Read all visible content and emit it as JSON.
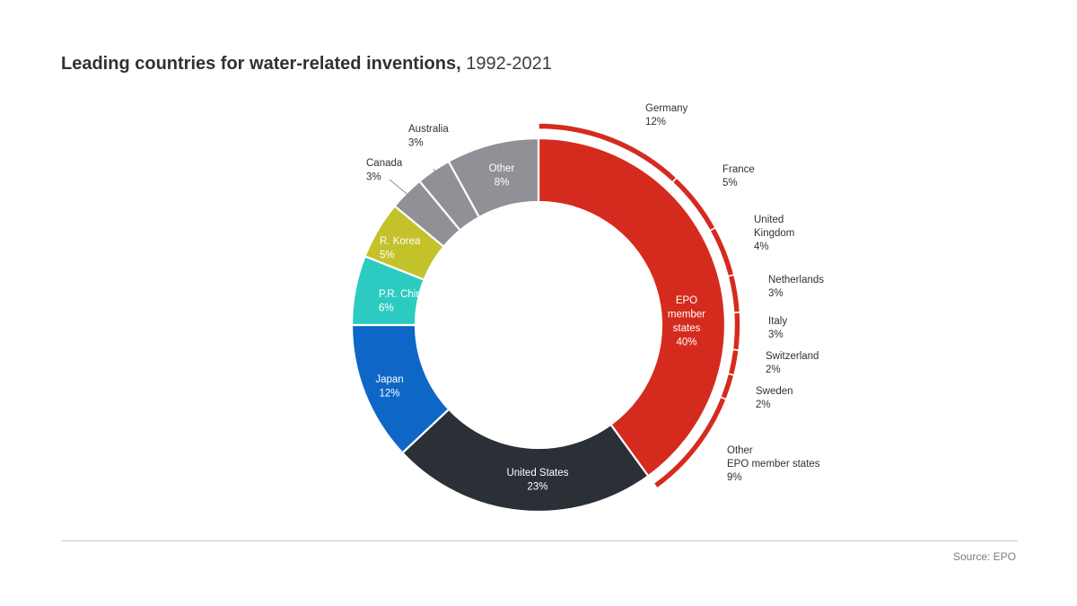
{
  "title": {
    "main": "Leading countries for water-related inventions,",
    "years": "1992-2021"
  },
  "source": "Source: EPO",
  "chart_data": {
    "type": "donut",
    "title": "Leading countries for water-related inventions, 1992-2021",
    "slices": [
      {
        "label": "EPO member states",
        "lines": [
          "EPO",
          "member",
          "states"
        ],
        "value": 40,
        "display": "40%",
        "color": "#d52b1e",
        "text_color": "#ffffff"
      },
      {
        "label": "United States",
        "lines": [
          "United States"
        ],
        "value": 23,
        "display": "23%",
        "color": "#2b2f36",
        "text_color": "#ffffff"
      },
      {
        "label": "Japan",
        "lines": [
          "Japan"
        ],
        "value": 12,
        "display": "12%",
        "color": "#0e67c6",
        "text_color": "#ffffff"
      },
      {
        "label": "P.R. China",
        "lines": [
          "P.R. China"
        ],
        "value": 6,
        "display": "6%",
        "color": "#2ccbc2",
        "text_color": "#ffffff"
      },
      {
        "label": "R. Korea",
        "lines": [
          "R. Korea"
        ],
        "value": 5,
        "display": "5%",
        "color": "#c3c22a",
        "text_color": "#ffffff"
      },
      {
        "label": "Canada",
        "lines": [
          "Canada"
        ],
        "value": 3,
        "display": "3%",
        "color": "#8f9196",
        "text_color": "#2e3138"
      },
      {
        "label": "Australia",
        "lines": [
          "Australia"
        ],
        "value": 3,
        "display": "3%",
        "color": "#8f9196",
        "text_color": "#2e3138"
      },
      {
        "label": "Other",
        "lines": [
          "Other"
        ],
        "value": 8,
        "display": "8%",
        "color": "#8f9196",
        "text_color": "#ffffff"
      }
    ],
    "epo_breakdown": {
      "color": "#d52b1e",
      "items": [
        {
          "label": "Germany",
          "lines": [
            "Germany"
          ],
          "value": 12,
          "display": "12%"
        },
        {
          "label": "France",
          "lines": [
            "France"
          ],
          "value": 5,
          "display": "5%"
        },
        {
          "label": "United Kingdom",
          "lines": [
            "United",
            "Kingdom"
          ],
          "value": 4,
          "display": "4%"
        },
        {
          "label": "Netherlands",
          "lines": [
            "Netherlands"
          ],
          "value": 3,
          "display": "3%"
        },
        {
          "label": "Italy",
          "lines": [
            "Italy"
          ],
          "value": 3,
          "display": "3%"
        },
        {
          "label": "Switzerland",
          "lines": [
            "Switzerland"
          ],
          "value": 2,
          "display": "2%"
        },
        {
          "label": "Sweden",
          "lines": [
            "Sweden"
          ],
          "value": 2,
          "display": "2%"
        },
        {
          "label": "Other EPO member states",
          "lines": [
            "Other",
            "EPO member states"
          ],
          "value": 9,
          "display": "9%"
        }
      ]
    }
  }
}
